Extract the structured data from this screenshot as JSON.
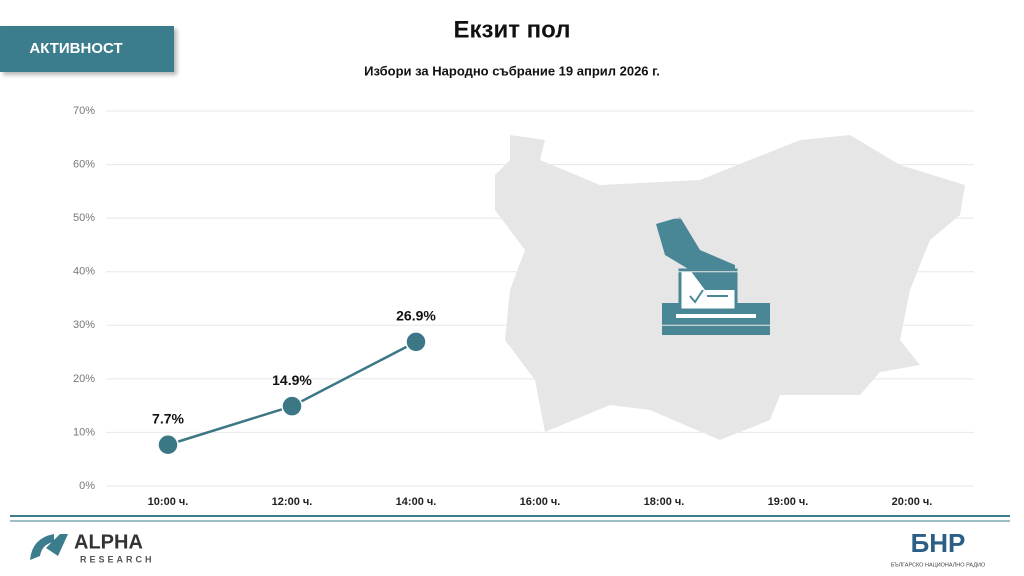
{
  "chart_data": {
    "type": "line",
    "badge": "АКТИВНОСТ",
    "title": "Екзит пол",
    "subtitle": "Избори за Народно събрание 19 април 2026 г.",
    "categories": [
      "10:00 ч.",
      "12:00 ч.",
      "14:00 ч.",
      "16:00 ч.",
      "18:00 ч.",
      "19:00 ч.",
      "20:00 ч."
    ],
    "series": [
      {
        "color": "#3b7785",
        "values": [
          7.7,
          14.9,
          26.9,
          null,
          null,
          null,
          null
        ],
        "value_labels": [
          "7.7%",
          "14.9%",
          "26.9%",
          null,
          null,
          null,
          null
        ]
      }
    ],
    "ylim": [
      0,
      70
    ],
    "yticks": [
      {
        "value": 0,
        "label": "0%"
      },
      {
        "value": 10,
        "label": "10%"
      },
      {
        "value": 20,
        "label": "20%"
      },
      {
        "value": 30,
        "label": "30%"
      },
      {
        "value": 40,
        "label": "40%"
      },
      {
        "value": 50,
        "label": "50%"
      },
      {
        "value": 60,
        "label": "60%"
      },
      {
        "value": 70,
        "label": "70%"
      }
    ],
    "grid": true
  },
  "logos": {
    "left": [
      "ALPHA",
      "RESEARCH"
    ],
    "right": [
      "БНР",
      "БЪЛГАРСКО НАЦИОНАЛНО РАДИО"
    ]
  }
}
